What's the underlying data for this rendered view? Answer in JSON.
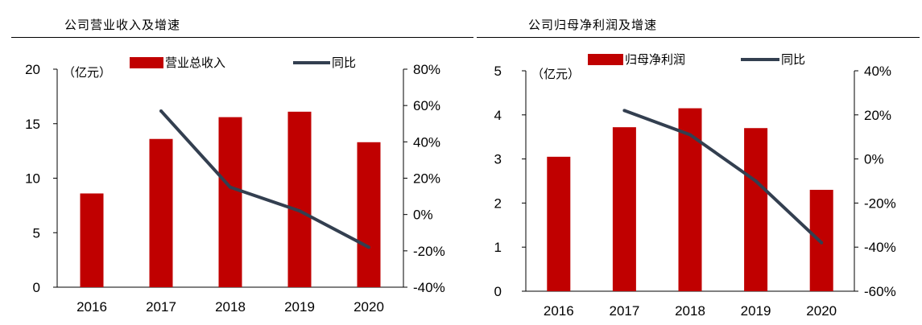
{
  "colors": {
    "bar": "#c00000",
    "line": "#333f50"
  },
  "chart_data": [
    {
      "type": "bar",
      "title": "公司营业收入及增速",
      "unit_label": "（亿元）",
      "categories": [
        "2016",
        "2017",
        "2018",
        "2019",
        "2020"
      ],
      "series": [
        {
          "name": "营业总收入",
          "kind": "bar",
          "axis": "left",
          "values": [
            8.6,
            13.6,
            15.6,
            16.1,
            13.3
          ]
        },
        {
          "name": "同比",
          "kind": "line",
          "axis": "right",
          "values": [
            null,
            57,
            15,
            2,
            -18
          ]
        }
      ],
      "ylim": [
        0,
        20
      ],
      "yticks": [
        "0",
        "5",
        "10",
        "15",
        "20"
      ],
      "y2lim": [
        -40,
        80
      ],
      "y2ticks": [
        "-40%",
        "-20%",
        "0%",
        "20%",
        "40%",
        "60%",
        "80%"
      ]
    },
    {
      "type": "bar",
      "title": "公司归母净利润及增速",
      "unit_label": "（亿元）",
      "categories": [
        "2016",
        "2017",
        "2018",
        "2019",
        "2020"
      ],
      "series": [
        {
          "name": "归母净利润",
          "kind": "bar",
          "axis": "left",
          "values": [
            3.05,
            3.72,
            4.15,
            3.7,
            2.3
          ]
        },
        {
          "name": "同比",
          "kind": "line",
          "axis": "right",
          "values": [
            null,
            22,
            11,
            -10,
            -38
          ]
        }
      ],
      "ylim": [
        0,
        5
      ],
      "yticks": [
        "0",
        "1",
        "2",
        "3",
        "4",
        "5"
      ],
      "y2lim": [
        -60,
        40
      ],
      "y2ticks": [
        "-60%",
        "-40%",
        "-20%",
        "0%",
        "20%",
        "40%"
      ]
    }
  ]
}
